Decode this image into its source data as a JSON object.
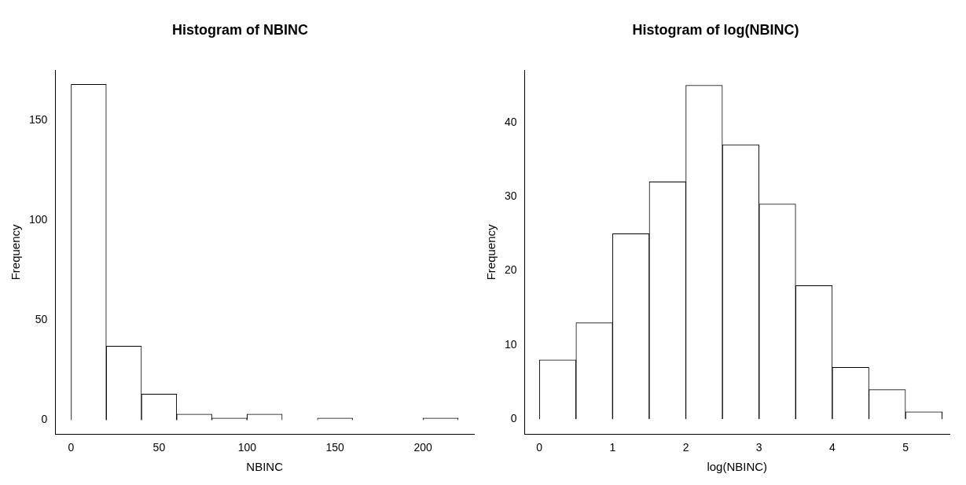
{
  "chart_data": [
    {
      "type": "histogram",
      "title": "Histogram of NBINC",
      "xlabel": "NBINC",
      "ylabel": "Frequency",
      "bins": [
        0,
        20,
        40,
        60,
        80,
        100,
        120,
        140,
        160,
        180,
        200,
        220
      ],
      "values": [
        168,
        37,
        13,
        3,
        1,
        3,
        0,
        1,
        0,
        0,
        1
      ],
      "color": "#ffffff",
      "xlim": [
        -9,
        229
      ],
      "xticks": [
        0,
        50,
        100,
        150,
        200
      ],
      "ylim": [
        -7,
        175
      ],
      "yticks": [
        0,
        50,
        100,
        150
      ]
    },
    {
      "type": "histogram",
      "title": "Histogram of log(NBINC)",
      "xlabel": "log(NBINC)",
      "ylabel": "Frequency",
      "bins": [
        0,
        0.5,
        1,
        1.5,
        2,
        2.5,
        3,
        3.5,
        4,
        4.5,
        5,
        5.5
      ],
      "values": [
        8,
        13,
        25,
        32,
        45,
        37,
        29,
        18,
        7,
        4,
        1
      ],
      "color": "#ffffff",
      "xlim": [
        -0.2,
        5.6
      ],
      "xticks": [
        0,
        1,
        2,
        3,
        4,
        5
      ],
      "ylim": [
        -2,
        47
      ],
      "yticks": [
        0,
        10,
        20,
        30,
        40
      ]
    }
  ]
}
